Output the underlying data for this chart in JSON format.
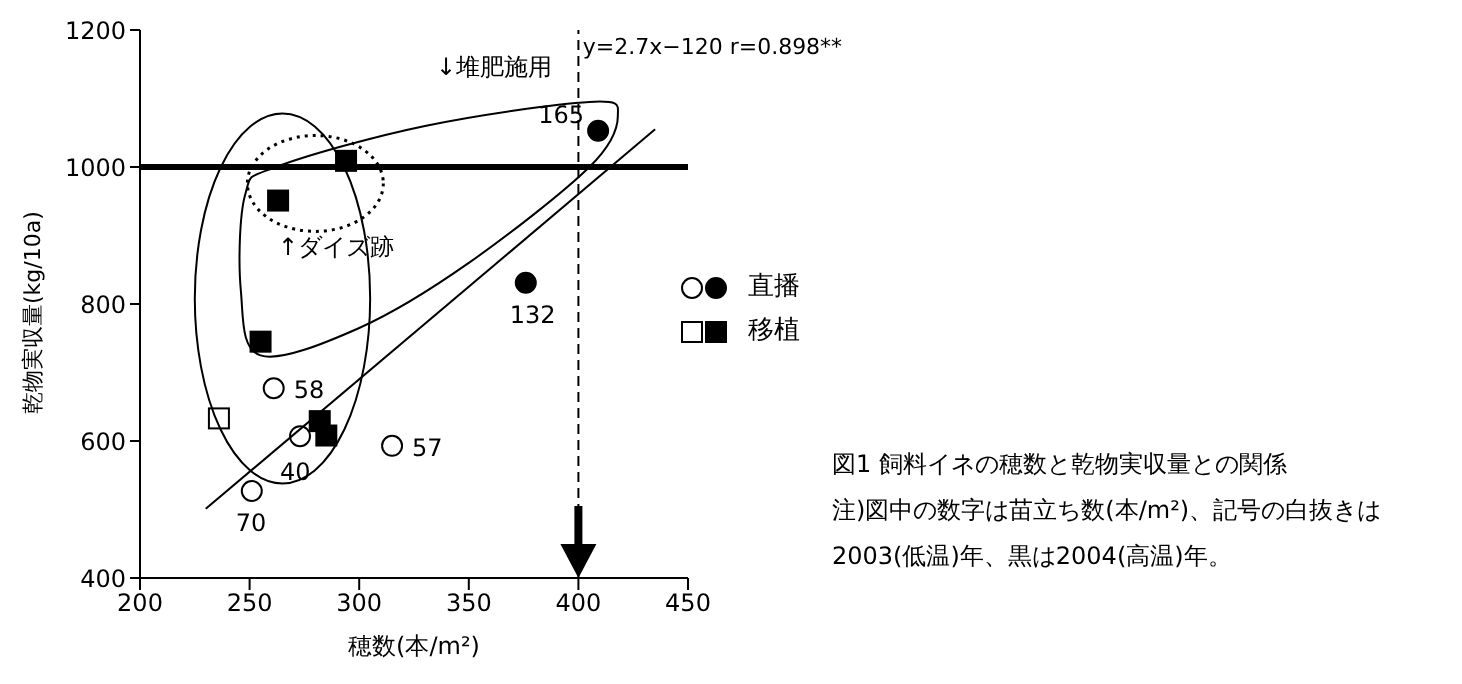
{
  "chart_data": {
    "type": "scatter",
    "title": "図1  飼料イネの穂数と乾物実収量との関係",
    "xlabel": "穂数(本/m²)",
    "ylabel": "乾物実収量(kg/10a)",
    "xlim": [
      200,
      450
    ],
    "xticks": [
      200,
      250,
      300,
      350,
      400,
      450
    ],
    "ylim": [
      400,
      1200
    ],
    "yticks": [
      400,
      600,
      800,
      1000,
      1200
    ],
    "grid": false,
    "legend": "right",
    "series": [
      {
        "color": "#ffffff",
        "marker": "circle",
        "x": [
          261,
          273,
          251,
          315
        ],
        "values": [
          677,
          607,
          527,
          593
        ]
      },
      {
        "name": "直播",
        "color": "#000000",
        "marker": "circle",
        "x": [
          409,
          376
        ],
        "values": [
          1053,
          831
        ]
      },
      {
        "color": "#ffffff",
        "marker": "square",
        "x": [
          236
        ],
        "values": [
          633
        ]
      },
      {
        "name": "移植",
        "color": "#000000",
        "marker": "square",
        "x": [
          294,
          263,
          255,
          282,
          285
        ],
        "values": [
          1009,
          951,
          745,
          629,
          608
        ]
      },
      {
        "type": "line",
        "color": "#000000",
        "marker": "none",
        "x": [
          230,
          435
        ],
        "values": [
          501,
          1055
        ]
      }
    ],
    "ref_lines": [
      {
        "axis": "y",
        "value": 1000,
        "color": "#000000",
        "line_style": "solid"
      },
      {
        "axis": "x",
        "value": 400,
        "color": "#000000",
        "line_style": "dashed"
      }
    ],
    "annotations": [
      "↓堆肥施用",
      "↑ダイズ跡",
      "y=2.7x−120  r=0.898**",
      {
        "text": "165",
        "x": 409,
        "y": 1053
      },
      {
        "text": "132",
        "x": 376,
        "y": 831
      },
      {
        "text": "58",
        "x": 261,
        "y": 677
      },
      {
        "text": "40",
        "x": 273,
        "y": 607
      },
      {
        "text": "70",
        "x": 251,
        "y": 527
      },
      {
        "text": "57",
        "x": 315,
        "y": 593
      },
      "注)図中の数字は苗立ち数(本/m²)、記号の白抜きは",
      "2003(低温)年、黒は2004(高温)年。"
    ]
  }
}
